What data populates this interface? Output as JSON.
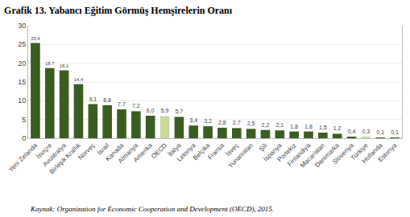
{
  "chart_data": {
    "type": "bar",
    "title": "Grafik 13. Yabancı Eğitim Görmüş Hemşirelerin Oranı",
    "source": "Kaynak: Organization for Economic Cooperation and Development (OECD), 2015.",
    "categories": [
      "Yeni Zelanda",
      "İsviçre",
      "Avustralya",
      "Birleşik Krallık",
      "Norveç",
      "İsrail",
      "Kanada",
      "Almanya",
      "Amerika",
      "OECD",
      "İtalya",
      "Letonya",
      "Belçika",
      "Fransa",
      "İsveç",
      "Yunanistan",
      "Şili",
      "İspanya",
      "Portekiz",
      "Finlandiya",
      "Macaristan",
      "Danimarka",
      "Slovenya",
      "Türkiye",
      "Hollanda",
      "Estonya"
    ],
    "values": [
      25.4,
      18.7,
      18.1,
      14.4,
      9.1,
      8.8,
      7.7,
      7.2,
      6.0,
      5.9,
      5.7,
      3.4,
      3.2,
      2.8,
      2.7,
      2.5,
      2.2,
      2.1,
      1.8,
      1.8,
      1.5,
      1.2,
      0.4,
      0.3,
      0.1,
      0.1
    ],
    "value_labels": [
      "25,4",
      "18,7",
      "18,1",
      "14,4",
      "9,1",
      "8,8",
      "7,7",
      "7,2",
      "6,0",
      "5,9",
      "5,7",
      "3,4",
      "3,2",
      "2,8",
      "2,7",
      "2,5",
      "2,2",
      "2,1",
      "1,8",
      "1,8",
      "1,5",
      "1,2",
      "0,4",
      "0,3",
      "0,1",
      "0,1"
    ],
    "data_labels": true,
    "colors": [
      "#3a5e1f",
      "#3a5e1f",
      "#3a5e1f",
      "#3a5e1f",
      "#3a5e1f",
      "#3a5e1f",
      "#3a5e1f",
      "#3a5e1f",
      "#3a5e1f",
      "#c8d89a",
      "#3a5e1f",
      "#3a5e1f",
      "#3a5e1f",
      "#3a5e1f",
      "#3a5e1f",
      "#3a5e1f",
      "#3a5e1f",
      "#3a5e1f",
      "#3a5e1f",
      "#3a5e1f",
      "#3a5e1f",
      "#3a5e1f",
      "#3a5e1f",
      "#c8d89a",
      "#3a5e1f",
      "#3a5e1f"
    ],
    "ylim": [
      0,
      30
    ],
    "yticks": [
      0,
      5,
      10,
      15,
      20,
      25,
      30
    ],
    "grid": true
  }
}
